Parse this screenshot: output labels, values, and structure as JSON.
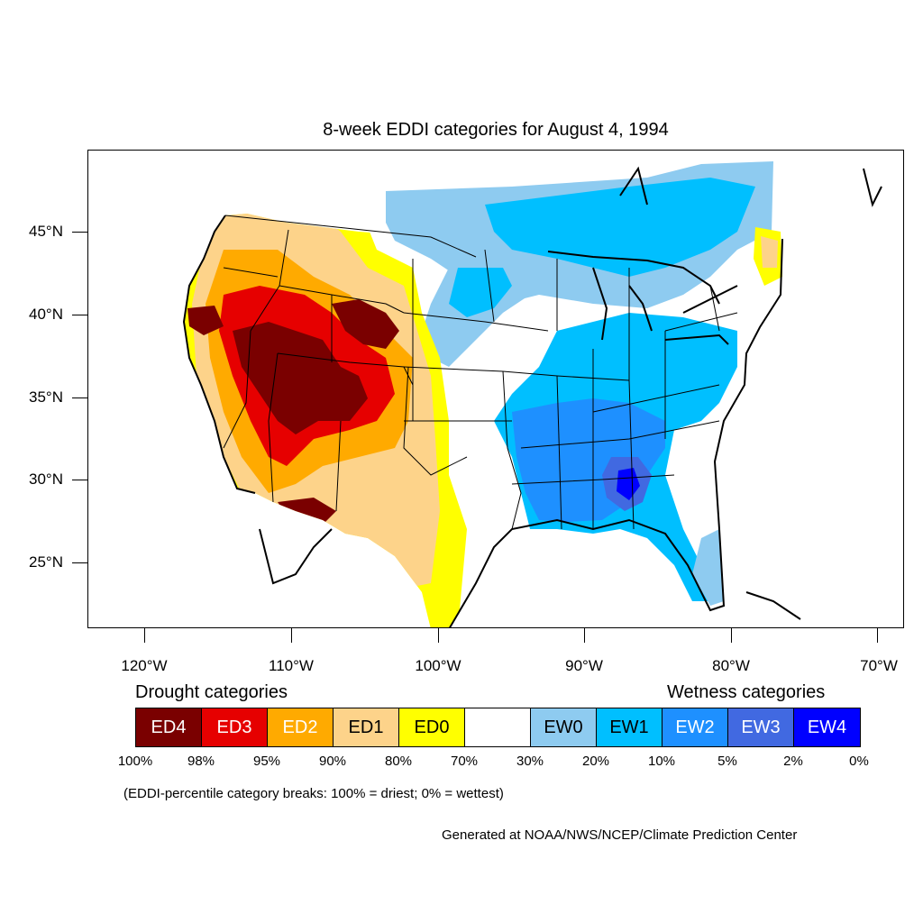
{
  "title": "8-week EDDI categories for August 4, 1994",
  "lat_labels": [
    "45°N",
    "40°N",
    "35°N",
    "30°N",
    "25°N"
  ],
  "lon_labels": [
    "120°W",
    "110°W",
    "100°W",
    "90°W",
    "80°W",
    "70°W"
  ],
  "legend": {
    "drought_heading": "Drought categories",
    "wetness_heading": "Wetness categories",
    "categories": [
      {
        "label": "ED4",
        "color": "#7a0000",
        "text_color": "#ffffff"
      },
      {
        "label": "ED3",
        "color": "#e60000",
        "text_color": "#ffffff"
      },
      {
        "label": "ED2",
        "color": "#ffaa00",
        "text_color": "#ffffff"
      },
      {
        "label": "ED1",
        "color": "#fdd38a",
        "text_color": "#000000"
      },
      {
        "label": "ED0",
        "color": "#ffff00",
        "text_color": "#000000"
      },
      {
        "label": "",
        "color": "#ffffff",
        "text_color": "#000000"
      },
      {
        "label": "EW0",
        "color": "#8ecbf0",
        "text_color": "#000000"
      },
      {
        "label": "EW1",
        "color": "#00bfff",
        "text_color": "#000000"
      },
      {
        "label": "EW2",
        "color": "#1e90ff",
        "text_color": "#ffffff"
      },
      {
        "label": "EW3",
        "color": "#4169e1",
        "text_color": "#ffffff"
      },
      {
        "label": "EW4",
        "color": "#0000ff",
        "text_color": "#ffffff"
      }
    ],
    "breaks": [
      "100%",
      "98%",
      "95%",
      "90%",
      "80%",
      "70%",
      "30%",
      "20%",
      "10%",
      "5%",
      "2%",
      "0%"
    ]
  },
  "note": "(EDDI-percentile category breaks: 100% = driest; 0% = wettest)",
  "credit": "Generated at NOAA/NWS/NCEP/Climate Prediction Center"
}
